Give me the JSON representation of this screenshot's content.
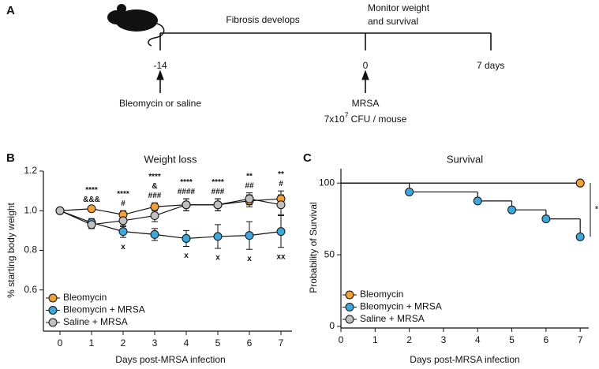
{
  "panel_labels": [
    "A",
    "B",
    "C"
  ],
  "timeline": {
    "phase1": "Fibrosis develops",
    "phase2_line1": "Monitor weight",
    "phase2_line2": "and survival",
    "points": [
      "-14",
      "0",
      "7 days"
    ],
    "event1": "Bleomycin or saline",
    "event2": "MRSA",
    "dose_base": "7x10",
    "dose_exp": "7",
    "dose_unit": "CFU / mouse"
  },
  "chart_data": [
    {
      "type": "line",
      "title": "Weight loss",
      "x_label": "Days post-MRSA infection",
      "y_label": "% starting body weight",
      "x": [
        0,
        1,
        2,
        3,
        4,
        5,
        6,
        7
      ],
      "xlim": [
        -0.5,
        7.5
      ],
      "xticks": [
        0,
        1,
        2,
        3,
        4,
        5,
        6,
        7
      ],
      "ylim": [
        0.4,
        1.2
      ],
      "yticks": [
        0.6,
        0.8,
        {
          "value": 1,
          "label": "1.0"
        },
        1.2
      ],
      "legend": "lower left",
      "series": [
        {
          "name": "Bleomycin",
          "color": "#f5a033",
          "values": [
            1.0,
            1.01,
            0.98,
            1.02,
            1.03,
            1.03,
            1.05,
            1.06
          ],
          "errors": [
            0,
            0.01,
            0.02,
            0.02,
            0.03,
            0.03,
            0.03,
            0.04
          ]
        },
        {
          "name": "Bleomycin + MRSA",
          "color": "#3aa8dc",
          "values": [
            1.0,
            0.94,
            0.895,
            0.88,
            0.86,
            0.87,
            0.875,
            0.895
          ],
          "errors": [
            0,
            0.02,
            0.03,
            0.03,
            0.04,
            0.06,
            0.07,
            0.08
          ]
        },
        {
          "name": "Saline + MRSA",
          "color": "#c0c0c0",
          "values": [
            1.0,
            0.93,
            0.95,
            0.975,
            1.03,
            1.03,
            1.06,
            1.03
          ],
          "errors": [
            0,
            0.02,
            0.03,
            0.03,
            0.03,
            0.03,
            0.03,
            0.05
          ]
        }
      ],
      "annotations": [
        {
          "x": 1,
          "above": [
            "****",
            "&&&"
          ]
        },
        {
          "x": 2,
          "above": [
            "****",
            "#"
          ],
          "below": "x"
        },
        {
          "x": 3,
          "above": [
            "****",
            "&",
            "###"
          ]
        },
        {
          "x": 4,
          "above": [
            "****",
            "####"
          ],
          "below": "x"
        },
        {
          "x": 5,
          "above": [
            "****",
            "###"
          ],
          "below": "x"
        },
        {
          "x": 6,
          "above": [
            "**",
            "##"
          ],
          "below": "x"
        },
        {
          "x": 7,
          "above": [
            "**",
            "#"
          ],
          "below": "xx"
        }
      ]
    },
    {
      "type": "step",
      "title": "Survival",
      "x_label": "Days post-MRSA infection",
      "y_label": "Probability of Survival",
      "xlim": [
        0,
        7.25
      ],
      "xticks": [
        0,
        1,
        2,
        3,
        4,
        5,
        6,
        7
      ],
      "ylim": [
        0,
        110
      ],
      "yticks": [
        0,
        50,
        100
      ],
      "legend": "lower left",
      "series": [
        {
          "name": "Bleomycin",
          "color": "#f5a033",
          "x": [
            0,
            7
          ],
          "values": [
            100,
            100
          ]
        },
        {
          "name": "Bleomycin + MRSA",
          "color": "#3aa8dc",
          "x": [
            0,
            2,
            4,
            5,
            6,
            7
          ],
          "values": [
            100,
            93.8,
            87.5,
            81.3,
            75,
            62.5
          ]
        },
        {
          "name": "Saline + MRSA",
          "color": "#c0c0c0",
          "x": [
            0,
            7
          ],
          "values": [
            100,
            100
          ]
        }
      ],
      "significance": "*"
    }
  ]
}
